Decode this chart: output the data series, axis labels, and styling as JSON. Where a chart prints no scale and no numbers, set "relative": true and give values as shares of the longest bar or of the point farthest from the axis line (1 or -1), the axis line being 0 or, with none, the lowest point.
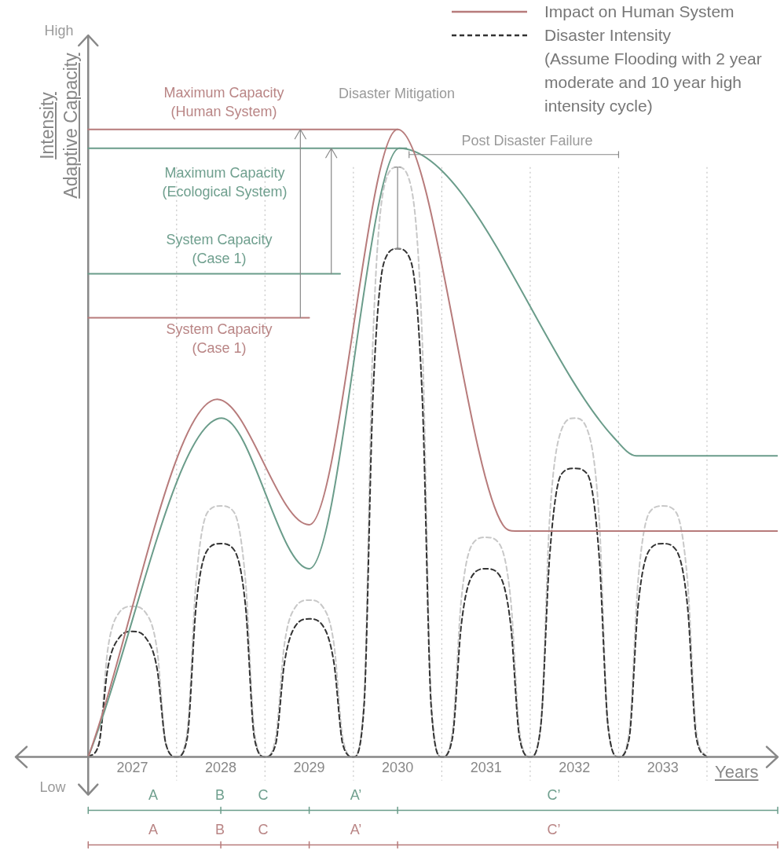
{
  "chart_data": {
    "type": "line",
    "relative": true,
    "xlim": [
      2025.68,
      2034.3
    ],
    "xticks": [
      2027,
      2028,
      2029,
      2030,
      2031,
      2032,
      2033
    ],
    "xlabel": "Years",
    "ylabel": "Intensity\nAdaptive Capacity",
    "legend": "top right",
    "grid": false,
    "marker": "none",
    "ref_lines": [
      {
        "axis": "x",
        "value": 2026.5,
        "color": "#888888",
        "line_style": "solid"
      },
      {
        "axis": "x",
        "value": 2027.5,
        "color": "#c4c4c4",
        "line_style": "dotted"
      },
      {
        "axis": "x",
        "value": 2028.5,
        "color": "#c4c4c4",
        "line_style": "dotted"
      },
      {
        "axis": "x",
        "value": 2029.5,
        "color": "#c4c4c4",
        "line_style": "dotted"
      },
      {
        "axis": "x",
        "value": 2030.5,
        "color": "#c4c4c4",
        "line_style": "dotted"
      },
      {
        "axis": "x",
        "value": 2031.5,
        "color": "#c4c4c4",
        "line_style": "dotted"
      },
      {
        "axis": "x",
        "value": 2032.5,
        "color": "#c4c4c4",
        "line_style": "dotted"
      },
      {
        "axis": "x",
        "value": 2033.5,
        "color": "#c4c4c4",
        "line_style": "dotted"
      }
    ],
    "series": [
      {
        "name": "Impact on Human System",
        "color": "#b77b7b",
        "line_style": "solid",
        "x": [
          2026.5,
          2027.96,
          2029.0,
          2030.0,
          2031.19,
          2031.33,
          2034.3
        ],
        "values": [
          0,
          0.57,
          0.37,
          1,
          0.37,
          0.36,
          0.36
        ]
      },
      {
        "color": "#6a9c8a",
        "line_style": "solid",
        "x": [
          2026.5,
          2028.01,
          2029.0,
          2030.02,
          2032.44,
          2032.7,
          2034.3
        ],
        "values": [
          0,
          0.54,
          0.3,
          0.97,
          0.51,
          0.48,
          0.48
        ]
      },
      {
        "name": "Disaster Intensity",
        "color": "#333333",
        "line_style": "dashed",
        "x": [
          2026.5,
          2026.62,
          2026.72,
          2026.85,
          2027,
          2027.15,
          2027.28,
          2027.38,
          2027.5,
          2027.62,
          2027.72,
          2027.85,
          2028,
          2028.15,
          2028.28,
          2028.38,
          2028.5,
          2028.62,
          2028.72,
          2028.85,
          2029,
          2029.15,
          2029.28,
          2029.38,
          2029.5,
          2029.62,
          2029.72,
          2029.85,
          2030,
          2030.15,
          2030.28,
          2030.38,
          2030.5,
          2030.62,
          2030.72,
          2030.85,
          2031,
          2031.15,
          2031.28,
          2031.38,
          2031.5,
          2031.62,
          2031.72,
          2031.85,
          2032,
          2032.15,
          2032.28,
          2032.38,
          2032.5,
          2032.62,
          2032.72,
          2032.85,
          2033,
          2033.15,
          2033.28,
          2033.38,
          2033.5
        ],
        "values": [
          0,
          0.02,
          0.14,
          0.19,
          0.2,
          0.19,
          0.14,
          0.02,
          0,
          0.03,
          0.24,
          0.33,
          0.34,
          0.33,
          0.24,
          0.03,
          0,
          0.02,
          0.15,
          0.21,
          0.22,
          0.21,
          0.15,
          0.02,
          0,
          0.08,
          0.57,
          0.79,
          0.81,
          0.79,
          0.57,
          0.08,
          0,
          0.03,
          0.21,
          0.29,
          0.3,
          0.29,
          0.21,
          0.03,
          0,
          0.05,
          0.32,
          0.45,
          0.46,
          0.45,
          0.32,
          0.05,
          0,
          0.03,
          0.24,
          0.33,
          0.34,
          0.33,
          0.24,
          0.03,
          0
        ]
      },
      {
        "color": "#c8c8c8",
        "line_style": "dashed",
        "x": [
          2026.5,
          2026.62,
          2026.72,
          2026.85,
          2027,
          2027.15,
          2027.28,
          2027.38,
          2027.5,
          2027.62,
          2027.72,
          2027.85,
          2028,
          2028.15,
          2028.28,
          2028.38,
          2028.5,
          2028.62,
          2028.72,
          2028.85,
          2029,
          2029.15,
          2029.28,
          2029.38,
          2029.5,
          2029.62,
          2029.72,
          2029.85,
          2030,
          2030.15,
          2030.28,
          2030.38,
          2030.5,
          2030.62,
          2030.72,
          2030.85,
          2031,
          2031.15,
          2031.28,
          2031.38,
          2031.5,
          2031.62,
          2031.72,
          2031.85,
          2032,
          2032.15,
          2032.28,
          2032.38,
          2032.5,
          2032.62,
          2032.72,
          2032.85,
          2033,
          2033.15,
          2033.28,
          2033.38,
          2033.5
        ],
        "values": [
          0,
          0.02,
          0.17,
          0.23,
          0.24,
          0.23,
          0.17,
          0.02,
          0,
          0.04,
          0.28,
          0.39,
          0.4,
          0.39,
          0.28,
          0.04,
          0,
          0.03,
          0.18,
          0.24,
          0.25,
          0.24,
          0.18,
          0.03,
          0,
          0.09,
          0.66,
          0.91,
          0.94,
          0.91,
          0.66,
          0.09,
          0,
          0.04,
          0.25,
          0.34,
          0.35,
          0.34,
          0.25,
          0.04,
          0,
          0.05,
          0.38,
          0.52,
          0.54,
          0.52,
          0.38,
          0.05,
          0,
          0.04,
          0.28,
          0.39,
          0.4,
          0.39,
          0.28,
          0.04,
          0
        ]
      },
      {
        "color": "#b77b7b",
        "line_style": "solid",
        "x": [
          2026.5,
          2030.0
        ],
        "values": [
          1,
          1
        ]
      },
      {
        "color": "#6a9c8a",
        "line_style": "solid",
        "x": [
          2026.5,
          2030.1
        ],
        "values": [
          0.97,
          0.97
        ]
      },
      {
        "color": "#6a9c8a",
        "line_style": "solid",
        "x": [
          2026.5,
          2029.35
        ],
        "values": [
          0.77,
          0.77
        ]
      },
      {
        "color": "#b77b7b",
        "line_style": "solid",
        "x": [
          2026.5,
          2029.0
        ],
        "values": [
          0.7,
          0.7
        ]
      }
    ],
    "annotations": [
      "High",
      "Low",
      "Maximum Capacity\n(Human System)",
      "Disaster Mitigation",
      "Post Disaster Failure",
      "Maximum Capacity\n(Ecological System)",
      "System Capacity\n(Case 1)",
      "System Capacity\n(Case 1)",
      "A",
      "B",
      "C",
      "A’",
      "C’",
      "A",
      "B",
      "C",
      "A’",
      "C’",
      "(Assume Flooding with 2 year moderate and 10 year high intensity cycle)"
    ]
  }
}
